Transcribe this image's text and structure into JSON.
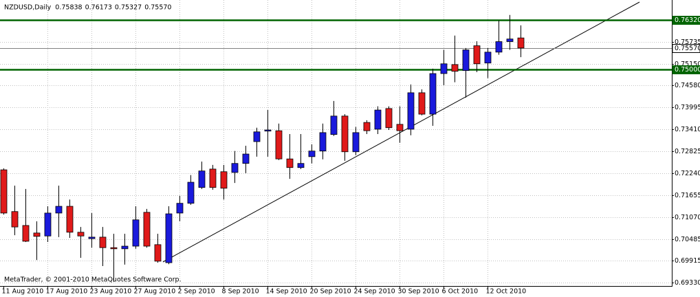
{
  "chart_data": {
    "type": "candlestick",
    "title": "NZDUSD,Daily",
    "header_values": [
      "0.75838",
      "0.76173",
      "0.75327",
      "0.75570"
    ],
    "footer": "MetaTrader, © 2001-2010 MetaQuotes Software Corp.",
    "categories": [
      "11 Aug 2010",
      null,
      null,
      null,
      "17 Aug 2010",
      null,
      null,
      null,
      "23 Aug 2010",
      null,
      null,
      null,
      "27 Aug 2010",
      null,
      null,
      null,
      "2 Sep 2010",
      null,
      null,
      null,
      "8 Sep 2010",
      null,
      null,
      null,
      "14 Sep 2010",
      null,
      null,
      null,
      "20 Sep 2010",
      null,
      null,
      null,
      "24 Sep 2010",
      null,
      null,
      null,
      "30 Sep 2010",
      null,
      null,
      null,
      "6 Oct 2010",
      null,
      null,
      null,
      "12 Oct 2010",
      null,
      null,
      null
    ],
    "open": [
      0.7233,
      0.7122,
      0.7085,
      0.7065,
      0.7057,
      0.7118,
      0.7136,
      0.7067,
      0.705,
      0.7054,
      0.7026,
      0.7023,
      0.703,
      0.712,
      0.7034,
      0.6986,
      0.7118,
      0.7144,
      0.7186,
      0.7235,
      0.7228,
      0.7226,
      0.725,
      0.7308,
      0.7336,
      0.7337,
      0.7262,
      0.7239,
      0.7268,
      0.7283,
      0.7327,
      0.7376,
      0.7281,
      0.7359,
      0.7341,
      0.7396,
      0.7354,
      0.7341,
      0.7438,
      0.7381,
      0.7489,
      0.7513,
      0.7497,
      0.7563,
      0.7517,
      0.7546,
      0.7574,
      0.75838
    ],
    "high": [
      0.7237,
      0.7191,
      0.7182,
      0.7096,
      0.7136,
      0.7191,
      0.7154,
      0.7081,
      0.7118,
      0.7081,
      0.7063,
      0.7063,
      0.7136,
      0.7129,
      0.7063,
      0.7136,
      0.7164,
      0.7219,
      0.7255,
      0.7246,
      0.7246,
      0.7283,
      0.7297,
      0.7345,
      0.7392,
      0.7356,
      0.7328,
      0.7328,
      0.7301,
      0.7356,
      0.7416,
      0.7381,
      0.7347,
      0.7365,
      0.7402,
      0.7402,
      0.7402,
      0.746,
      0.7447,
      0.7502,
      0.7552,
      0.759,
      0.7557,
      0.7575,
      0.7557,
      0.763,
      0.7645,
      0.76173
    ],
    "low": [
      0.7114,
      0.7059,
      0.7041,
      0.6993,
      0.7041,
      0.7054,
      0.7052,
      0.6999,
      0.7026,
      0.6977,
      0.6935,
      0.6981,
      0.7023,
      0.7026,
      0.6986,
      0.6982,
      0.7096,
      0.714,
      0.7182,
      0.718,
      0.7154,
      0.7198,
      0.7224,
      0.7268,
      0.7268,
      0.7259,
      0.7209,
      0.7235,
      0.725,
      0.7261,
      0.7323,
      0.7257,
      0.7272,
      0.7328,
      0.7328,
      0.7339,
      0.7305,
      0.7325,
      0.7378,
      0.735,
      0.7458,
      0.7466,
      0.7425,
      0.7493,
      0.7477,
      0.7539,
      0.7552,
      0.75327
    ],
    "close": [
      0.7118,
      0.7081,
      0.7043,
      0.7056,
      0.7118,
      0.7136,
      0.7067,
      0.7057,
      0.7054,
      0.7026,
      0.7023,
      0.703,
      0.71,
      0.703,
      0.699,
      0.7116,
      0.7144,
      0.72,
      0.723,
      0.7186,
      0.7184,
      0.725,
      0.7275,
      0.7334,
      0.7339,
      0.7262,
      0.7239,
      0.725,
      0.7283,
      0.7332,
      0.7376,
      0.7281,
      0.7332,
      0.7337,
      0.7392,
      0.7345,
      0.7337,
      0.7438,
      0.7381,
      0.7489,
      0.7515,
      0.7495,
      0.7552,
      0.7515,
      0.7546,
      0.7574,
      0.7581,
      0.7557
    ],
    "up_color": "#1a1adc",
    "down_color": "#e01a1a",
    "ylim": [
      0.6924,
      0.7681
    ],
    "yticks": [
      0.75735,
      {
        "value": 0.7515,
        "label": "0.75150"
      },
      {
        "value": 0.7458,
        "label": "0.74580"
      },
      0.73995,
      {
        "value": 0.7341,
        "label": "0.73410"
      },
      0.72825,
      {
        "value": 0.7224,
        "label": "0.72240"
      },
      0.71655,
      {
        "value": 0.7107,
        "label": "0.71070"
      },
      0.70485,
      0.69915,
      {
        "value": 0.6933,
        "label": "0.69330"
      }
    ],
    "levels": [
      {
        "value": 0.7632,
        "label": "0.76320",
        "color": "#006400"
      },
      {
        "value": 0.75,
        "label": "0.75000",
        "color": "#006400"
      },
      {
        "value": 0.7557,
        "label": "0.75570",
        "color": "#808080"
      }
    ],
    "grid": true
  }
}
